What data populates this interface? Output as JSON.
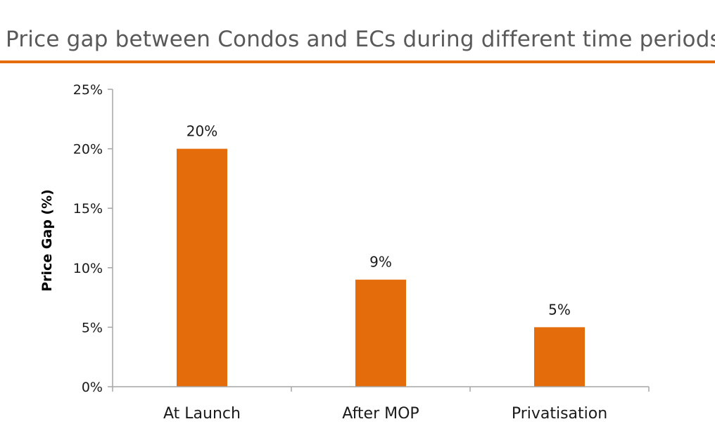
{
  "chart_data": {
    "type": "bar",
    "title": "Price gap between Condos and ECs during different time periods",
    "xlabel": "",
    "ylabel": "Price Gap (%)",
    "categories": [
      "At Launch",
      "After MOP",
      "Privatisation"
    ],
    "values": [
      20,
      9,
      5
    ],
    "data_labels": [
      "20%",
      "9%",
      "5%"
    ],
    "ylim": [
      0,
      25
    ],
    "yticks": [
      0,
      5,
      10,
      15,
      20,
      25
    ],
    "ytick_labels": [
      "0%",
      "5%",
      "10%",
      "15%",
      "20%",
      "25%"
    ],
    "grid": false,
    "legend": "none",
    "bar_color": "#e46c0a",
    "title_rule_color": "#e46c0a"
  }
}
